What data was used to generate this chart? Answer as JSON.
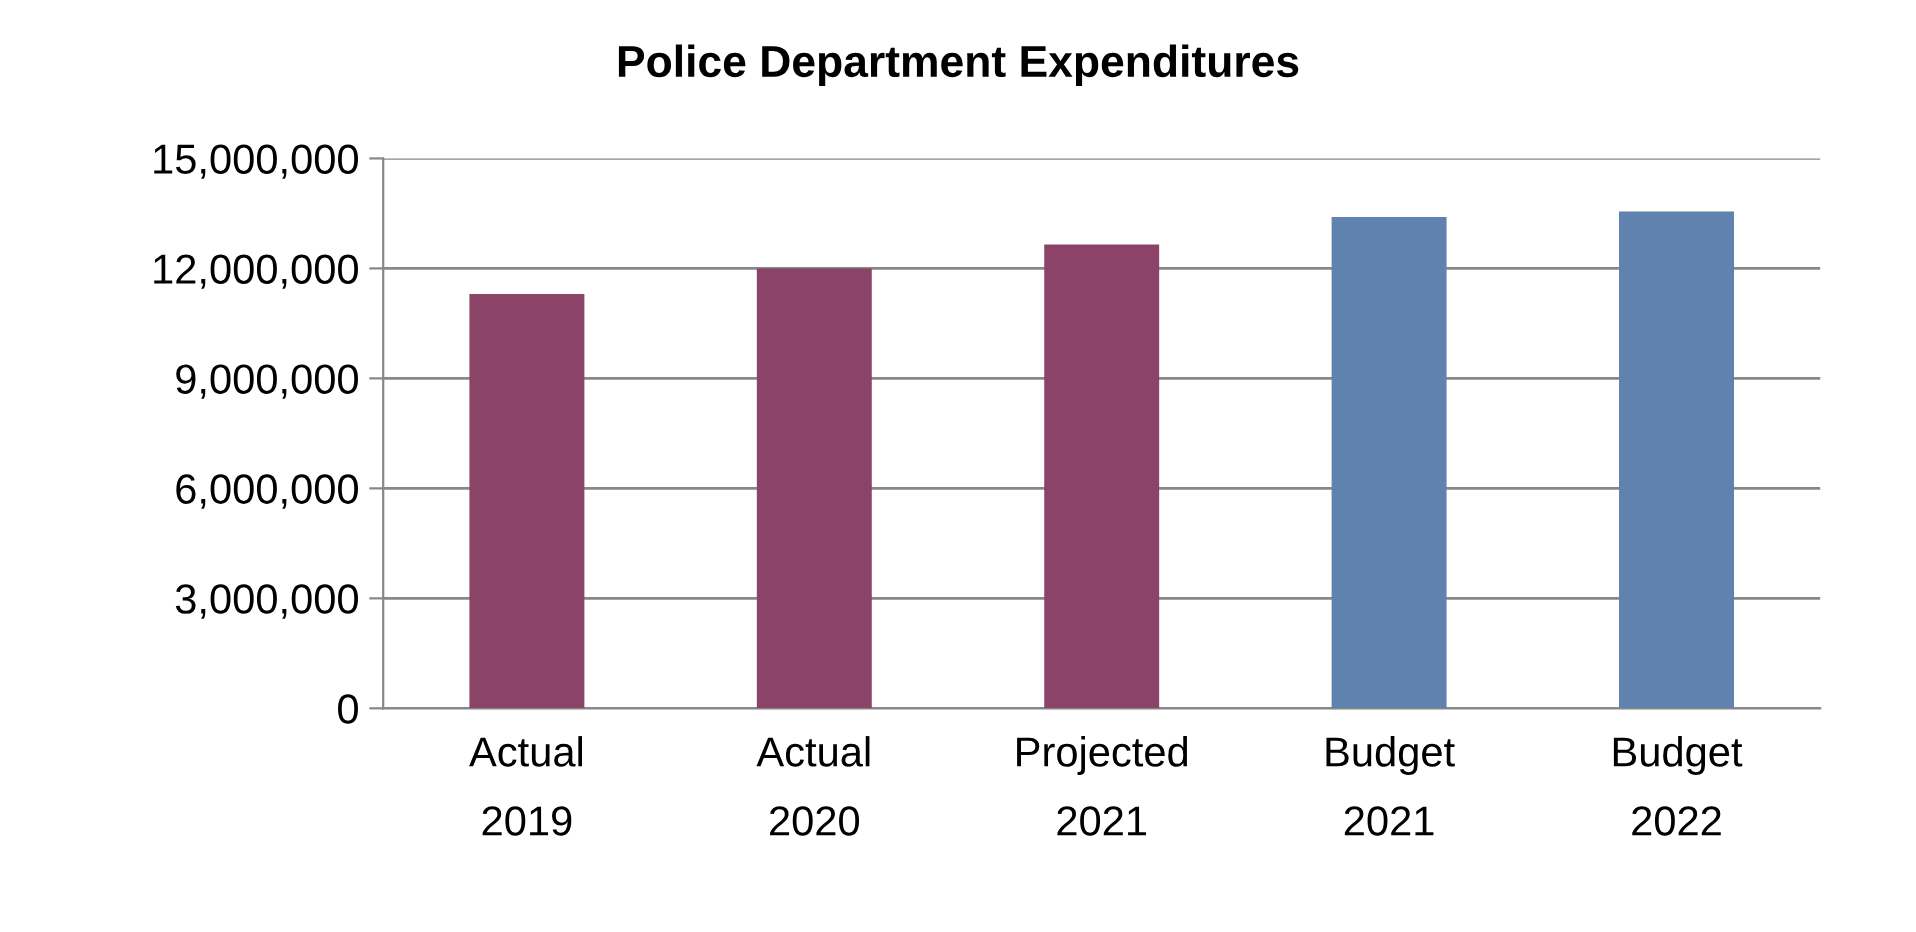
{
  "chart_data": {
    "type": "bar",
    "title": "Police Department Expenditures",
    "categories": [
      "Actual\n2019",
      "Actual\n2020",
      "Projected\n2021",
      "Budget\n2021",
      "Budget\n2022"
    ],
    "values": [
      11300000,
      12000000,
      12650000,
      13400000,
      13550000
    ],
    "colors": [
      "#8b4367",
      "#8b4367",
      "#8b4367",
      "#5f82ae",
      "#5f82ae"
    ],
    "ylim": [
      0,
      15000000
    ],
    "yticks": [
      0,
      {
        "value": 3000000,
        "label": "3,000,000"
      },
      {
        "value": 6000000,
        "label": "6,000,000"
      },
      {
        "value": 9000000,
        "label": "9,000,000"
      },
      {
        "value": 12000000,
        "label": "12,000,000"
      },
      {
        "value": 15000000,
        "label": "15,000,000"
      }
    ],
    "grid": "y",
    "legend": false
  }
}
